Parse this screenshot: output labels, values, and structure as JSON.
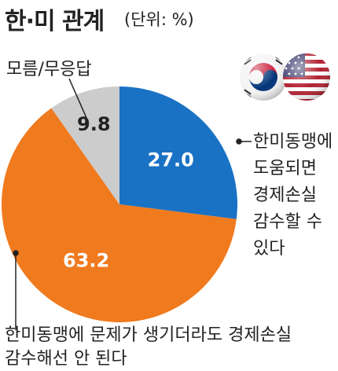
{
  "header": {
    "title": "한·미 관계",
    "unit": "(단위: %)"
  },
  "chart_data": {
    "type": "pie",
    "start_angle_deg": 0,
    "direction": "clockwise",
    "slices": [
      {
        "label": "한미동맹에 도움되면 경제손실 감수할 수 있다",
        "value": 27.0,
        "value_label": "27.0",
        "color": "#1a72c4",
        "text_color": "#ffffff"
      },
      {
        "label": "한미동맹에 문제가 생기더라도 경제손실 감수해선 안 된다",
        "value": 63.2,
        "value_label": "63.2",
        "color": "#f07a1e",
        "text_color": "#ffffff"
      },
      {
        "label": "모름/무응답",
        "value": 9.8,
        "value_label": "9.8",
        "color": "#cccccc",
        "text_color": "#222222"
      }
    ]
  },
  "labels": {
    "unknown": "모름/무응답",
    "support_lines": [
      "한미동맹에",
      "도움되면",
      "경제손실",
      "감수할 수",
      "있다"
    ],
    "oppose_lines": [
      "한미동맹에 문제가 생기더라도 경제손실",
      "감수해선 안 된다"
    ]
  },
  "flags": [
    {
      "name": "korea-flag-icon"
    },
    {
      "name": "usa-flag-icon"
    }
  ]
}
